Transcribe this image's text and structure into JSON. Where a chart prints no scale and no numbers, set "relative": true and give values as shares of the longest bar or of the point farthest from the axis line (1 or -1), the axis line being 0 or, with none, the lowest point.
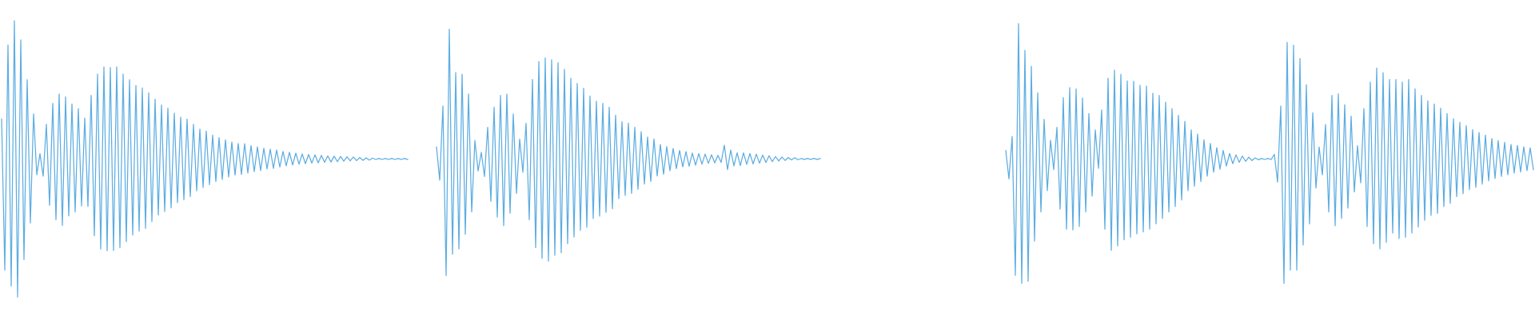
{
  "chart_data": [
    {
      "type": "line",
      "relative": true,
      "categories": [
        null,
        null,
        null,
        null,
        null,
        null,
        null,
        null,
        null,
        null,
        null,
        null,
        null,
        null,
        null,
        null,
        null,
        null,
        null,
        null,
        null,
        null,
        null,
        null,
        null,
        null,
        null,
        null,
        null,
        null,
        null,
        null,
        null,
        null,
        null,
        null,
        null,
        null,
        null,
        null,
        null,
        null,
        null,
        null,
        null,
        null,
        null,
        null,
        null,
        null,
        null,
        null,
        null,
        null,
        null,
        null,
        null,
        null,
        null,
        null,
        null,
        null,
        null,
        null,
        null,
        null,
        null,
        null,
        null,
        null,
        null,
        null,
        null,
        null,
        null,
        null,
        null,
        null,
        null,
        null,
        null,
        null,
        null,
        null,
        null,
        null,
        null,
        null,
        null,
        null,
        null,
        null,
        null,
        null,
        null,
        null,
        null,
        null,
        null,
        null,
        null,
        null,
        null,
        null,
        null,
        null,
        null,
        null,
        null,
        null,
        null,
        null,
        null,
        null,
        null,
        null,
        null,
        null,
        null,
        null,
        null,
        null,
        null,
        null,
        null,
        null,
        null,
        null
      ],
      "series": [
        {
          "color": "#5dade2",
          "values": [
            0.644,
            0.098,
            0.912,
            0.04,
            1.0,
            0.0,
            0.931,
            0.136,
            0.787,
            0.268,
            0.663,
            0.443,
            0.519,
            0.438,
            0.625,
            0.332,
            0.701,
            0.28,
            0.735,
            0.259,
            0.725,
            0.294,
            0.699,
            0.308,
            0.682,
            0.33,
            0.648,
            0.328,
            0.73,
            0.222,
            0.807,
            0.174,
            0.833,
            0.168,
            0.831,
            0.169,
            0.833,
            0.179,
            0.807,
            0.201,
            0.787,
            0.225,
            0.766,
            0.239,
            0.757,
            0.249,
            0.739,
            0.274,
            0.716,
            0.297,
            0.695,
            0.31,
            0.684,
            0.323,
            0.666,
            0.342,
            0.651,
            0.352,
            0.644,
            0.364,
            0.625,
            0.385,
            0.608,
            0.397,
            0.601,
            0.407,
            0.586,
            0.419,
            0.577,
            0.426,
            0.569,
            0.435,
            0.561,
            0.442,
            0.556,
            0.444,
            0.555,
            0.449,
            0.548,
            0.454,
            0.544,
            0.458,
            0.539,
            0.464,
            0.535,
            0.466,
            0.532,
            0.471,
            0.527,
            0.475,
            0.524,
            0.478,
            0.521,
            0.481,
            0.518,
            0.483,
            0.516,
            0.485,
            0.515,
            0.486,
            0.513,
            0.488,
            0.511,
            0.489,
            0.51,
            0.49,
            0.509,
            0.492,
            0.508,
            0.493,
            0.507,
            0.494,
            0.505,
            0.495,
            0.504,
            0.496,
            0.503,
            0.498,
            0.502,
            0.498,
            0.502,
            0.498,
            0.502,
            0.498,
            0.502,
            0.498,
            0.502,
            0.498
          ]
        }
      ]
    },
    {
      "type": "line",
      "relative": true,
      "categories": [
        null,
        null,
        null,
        null,
        null,
        null,
        null,
        null,
        null,
        null,
        null,
        null,
        null,
        null,
        null,
        null,
        null,
        null,
        null,
        null,
        null,
        null,
        null,
        null,
        null,
        null,
        null,
        null,
        null,
        null,
        null,
        null,
        null,
        null,
        null,
        null,
        null,
        null,
        null,
        null,
        null,
        null,
        null,
        null,
        null,
        null,
        null,
        null,
        null,
        null,
        null,
        null,
        null,
        null,
        null,
        null,
        null,
        null,
        null,
        null,
        null,
        null,
        null,
        null,
        null,
        null,
        null,
        null,
        null,
        null,
        null,
        null,
        null,
        null,
        null,
        null,
        null,
        null,
        null,
        null,
        null,
        null,
        null,
        null,
        null,
        null,
        null,
        null,
        null,
        null,
        null,
        null,
        null,
        null,
        null,
        null,
        null,
        null,
        null,
        null,
        null,
        null,
        null,
        null,
        null,
        null,
        null,
        null,
        null,
        null,
        null,
        null,
        null,
        null,
        null,
        null,
        null,
        null,
        null,
        null,
        null
      ],
      "series": [
        {
          "color": "#5dade2",
          "values": [
            0.522,
            0.387,
            0.688,
            0.0,
            1.0,
            0.086,
            0.824,
            0.108,
            0.817,
            0.167,
            0.737,
            0.258,
            0.548,
            0.424,
            0.5,
            0.402,
            0.602,
            0.301,
            0.683,
            0.237,
            0.731,
            0.202,
            0.737,
            0.253,
            0.656,
            0.333,
            0.554,
            0.419,
            0.618,
            0.226,
            0.796,
            0.113,
            0.869,
            0.069,
            0.883,
            0.058,
            0.876,
            0.082,
            0.864,
            0.092,
            0.837,
            0.129,
            0.801,
            0.156,
            0.78,
            0.183,
            0.76,
            0.196,
            0.729,
            0.231,
            0.708,
            0.241,
            0.699,
            0.256,
            0.683,
            0.271,
            0.651,
            0.312,
            0.624,
            0.325,
            0.619,
            0.333,
            0.602,
            0.35,
            0.584,
            0.371,
            0.562,
            0.382,
            0.554,
            0.404,
            0.532,
            0.411,
            0.523,
            0.425,
            0.516,
            0.434,
            0.508,
            0.441,
            0.503,
            0.444,
            0.497,
            0.448,
            0.495,
            0.452,
            0.493,
            0.455,
            0.49,
            0.457,
            0.488,
            0.459,
            0.529,
            0.43,
            0.509,
            0.445,
            0.498,
            0.446,
            0.498,
            0.451,
            0.495,
            0.453,
            0.493,
            0.456,
            0.489,
            0.459,
            0.486,
            0.462,
            0.483,
            0.465,
            0.481,
            0.467,
            0.479,
            0.469,
            0.478,
            0.47,
            0.475,
            0.471,
            0.475,
            0.471,
            0.475,
            0.471,
            0.475
          ]
        }
      ]
    },
    {
      "type": "line",
      "relative": true,
      "categories": [
        null,
        null,
        null,
        null,
        null,
        null,
        null,
        null,
        null,
        null,
        null,
        null,
        null,
        null,
        null,
        null,
        null,
        null,
        null,
        null,
        null,
        null,
        null,
        null,
        null,
        null,
        null,
        null,
        null,
        null,
        null,
        null,
        null,
        null,
        null,
        null,
        null,
        null,
        null,
        null,
        null,
        null,
        null,
        null,
        null,
        null,
        null,
        null,
        null,
        null,
        null,
        null,
        null,
        null,
        null,
        null,
        null,
        null,
        null,
        null,
        null,
        null,
        null,
        null,
        null,
        null,
        null,
        null,
        null,
        null,
        null,
        null,
        null,
        null,
        null,
        null,
        null,
        null,
        null,
        null,
        null,
        null,
        null,
        null,
        null,
        null,
        null,
        null,
        null,
        null,
        null,
        null,
        null,
        null,
        null,
        null,
        null,
        null,
        null,
        null,
        null,
        null,
        null,
        null,
        null,
        null,
        null,
        null,
        null,
        null,
        null,
        null,
        null,
        null,
        null,
        null,
        null,
        null,
        null,
        null,
        null,
        null,
        null,
        null,
        null,
        null,
        null,
        null,
        null,
        null,
        null,
        null,
        null,
        null,
        null,
        null,
        null,
        null,
        null,
        null,
        null,
        null,
        null,
        null,
        null,
        null,
        null,
        null,
        null,
        null,
        null,
        null,
        null,
        null,
        null,
        null,
        null,
        null,
        null,
        null,
        null,
        null,
        null,
        null,
        null,
        null
      ],
      "series": [
        {
          "color": "#5dade2",
          "values": [
            0.511,
            0.403,
            0.566,
            0.031,
            1.0,
            0.0,
            0.897,
            0.008,
            0.836,
            0.163,
            0.734,
            0.275,
            0.632,
            0.357,
            0.551,
            0.438,
            0.601,
            0.286,
            0.715,
            0.209,
            0.754,
            0.206,
            0.749,
            0.219,
            0.714,
            0.275,
            0.654,
            0.336,
            0.591,
            0.443,
            0.668,
            0.209,
            0.79,
            0.127,
            0.821,
            0.145,
            0.805,
            0.168,
            0.78,
            0.178,
            0.778,
            0.191,
            0.763,
            0.198,
            0.76,
            0.209,
            0.732,
            0.229,
            0.724,
            0.25,
            0.698,
            0.275,
            0.673,
            0.296,
            0.647,
            0.321,
            0.624,
            0.357,
            0.591,
            0.374,
            0.575,
            0.392,
            0.553,
            0.413,
            0.539,
            0.428,
            0.523,
            0.44,
            0.512,
            0.452,
            0.5,
            0.461,
            0.495,
            0.466,
            0.49,
            0.47,
            0.486,
            0.473,
            0.483,
            0.476,
            0.481,
            0.477,
            0.481,
            0.477,
            0.497,
            0.39,
            0.683,
            0.0,
            0.928,
            0.051,
            0.917,
            0.051,
            0.866,
            0.148,
            0.765,
            0.229,
            0.657,
            0.367,
            0.525,
            0.418,
            0.612,
            0.275,
            0.724,
            0.222,
            0.73,
            0.25,
            0.688,
            0.29,
            0.644,
            0.352,
            0.53,
            0.387,
            0.673,
            0.219,
            0.775,
            0.153,
            0.829,
            0.133,
            0.811,
            0.158,
            0.785,
            0.194,
            0.785,
            0.173,
            0.775,
            0.178,
            0.785,
            0.194,
            0.749,
            0.217,
            0.724,
            0.243,
            0.703,
            0.262,
            0.691,
            0.27,
            0.675,
            0.296,
            0.654,
            0.308,
            0.634,
            0.334,
            0.62,
            0.345,
            0.607,
            0.361,
            0.592,
            0.37,
            0.581,
            0.382,
            0.571,
            0.395,
            0.558,
            0.404,
            0.55,
            0.412,
            0.543,
            0.418,
            0.535,
            0.425,
            0.531,
            0.429,
            0.526,
            0.434,
            0.522,
            0.438
          ]
        }
      ]
    }
  ]
}
